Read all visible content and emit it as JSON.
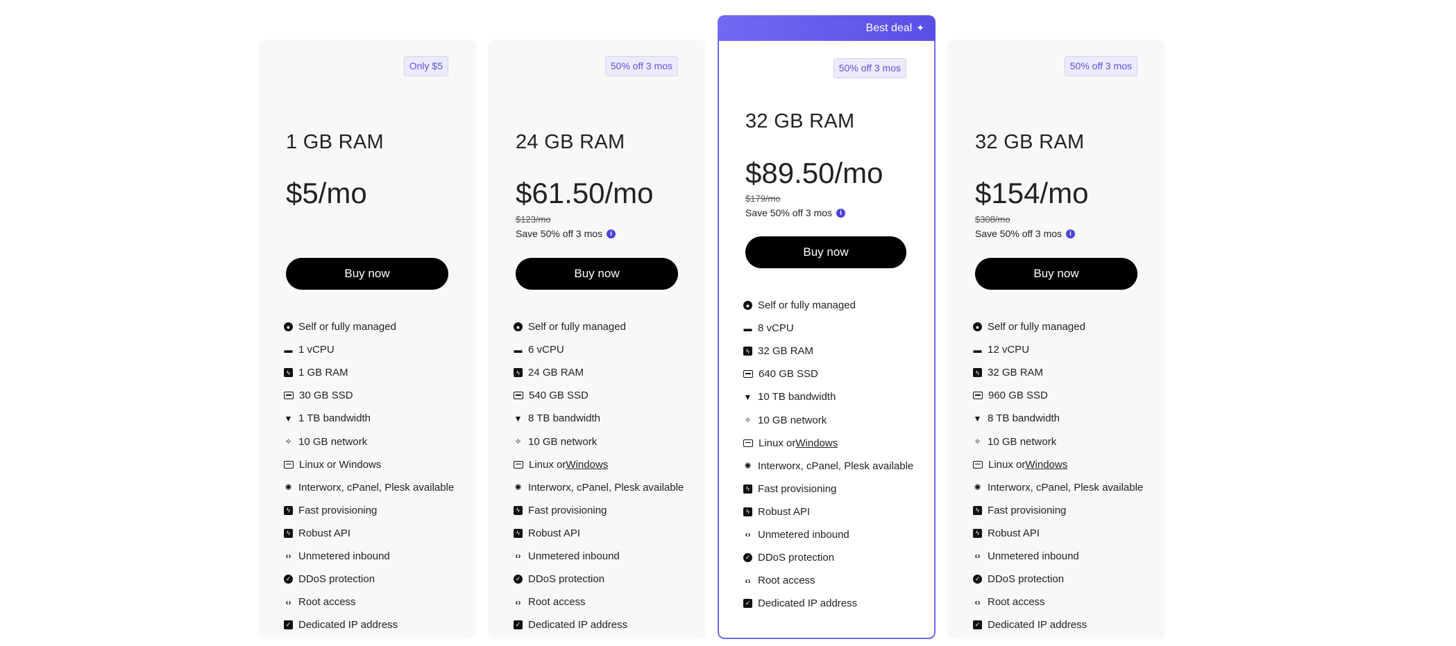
{
  "featured_banner": "Best deal",
  "plans": [
    {
      "badge": "Only $5",
      "title": "1 GB RAM",
      "price": "$5/mo",
      "old_price": "",
      "save_note": "",
      "button": "Buy now",
      "features": [
        {
          "icon": "user-icon",
          "text": "Self or fully managed"
        },
        {
          "icon": "cpu-icon",
          "text": "1 vCPU"
        },
        {
          "icon": "bolt-icon",
          "text": "1 GB RAM"
        },
        {
          "icon": "storage-icon",
          "text": "30 GB SSD"
        },
        {
          "icon": "wifi-icon",
          "text": "1 TB bandwidth"
        },
        {
          "icon": "sparkle-icon",
          "text": "10 GB network"
        },
        {
          "icon": "server-icon",
          "text": "Linux or Windows"
        },
        {
          "icon": "gear-icon",
          "text": "Interworx, cPanel, Plesk available"
        },
        {
          "icon": "bolt-icon",
          "text": "Fast provisioning"
        },
        {
          "icon": "bolt-icon",
          "text": "Robust API"
        },
        {
          "icon": "code-icon",
          "text": "Unmetered inbound"
        },
        {
          "icon": "shield-icon",
          "text": "DDoS protection"
        },
        {
          "icon": "code-icon",
          "text": "Root access"
        },
        {
          "icon": "check-icon",
          "text": "Dedicated IP address"
        }
      ]
    },
    {
      "badge": "50% off 3 mos",
      "title": "24 GB RAM",
      "price": "$61.50/mo",
      "old_price": "$123/mo",
      "save_note": "Save 50% off 3 mos",
      "button": "Buy now",
      "features": [
        {
          "icon": "user-icon",
          "text": "Self or fully managed"
        },
        {
          "icon": "cpu-icon",
          "text": "6 vCPU"
        },
        {
          "icon": "bolt-icon",
          "text": "24 GB RAM"
        },
        {
          "icon": "storage-icon",
          "text": "540 GB SSD"
        },
        {
          "icon": "wifi-icon",
          "text": "8 TB bandwidth"
        },
        {
          "icon": "sparkle-icon",
          "text": "10 GB network"
        },
        {
          "icon": "server-icon",
          "text": "Linux or ",
          "link": "Windows"
        },
        {
          "icon": "gear-icon",
          "text": "Interworx, cPanel, Plesk available"
        },
        {
          "icon": "bolt-icon",
          "text": "Fast provisioning"
        },
        {
          "icon": "bolt-icon",
          "text": "Robust API"
        },
        {
          "icon": "code-icon",
          "text": "Unmetered inbound"
        },
        {
          "icon": "shield-icon",
          "text": "DDoS protection"
        },
        {
          "icon": "code-icon",
          "text": "Root access"
        },
        {
          "icon": "check-icon",
          "text": "Dedicated IP address"
        }
      ]
    },
    {
      "badge": "50% off 3 mos",
      "title": "32 GB RAM",
      "price": "$89.50/mo",
      "old_price": "$179/mo",
      "save_note": "Save 50% off 3 mos",
      "button": "Buy now",
      "features": [
        {
          "icon": "user-icon",
          "text": "Self or fully managed"
        },
        {
          "icon": "cpu-icon",
          "text": "8 vCPU"
        },
        {
          "icon": "bolt-icon",
          "text": "32 GB RAM"
        },
        {
          "icon": "storage-icon",
          "text": "640 GB SSD"
        },
        {
          "icon": "wifi-icon",
          "text": "10 TB bandwidth"
        },
        {
          "icon": "sparkle-icon",
          "text": "10 GB network"
        },
        {
          "icon": "server-icon",
          "text": "Linux or ",
          "link": "Windows"
        },
        {
          "icon": "gear-icon",
          "text": "Interworx, cPanel, Plesk available"
        },
        {
          "icon": "bolt-icon",
          "text": "Fast provisioning"
        },
        {
          "icon": "bolt-icon",
          "text": "Robust API"
        },
        {
          "icon": "code-icon",
          "text": "Unmetered inbound"
        },
        {
          "icon": "shield-icon",
          "text": "DDoS protection"
        },
        {
          "icon": "code-icon",
          "text": "Root access"
        },
        {
          "icon": "check-icon",
          "text": "Dedicated IP address"
        }
      ]
    },
    {
      "badge": "50% off 3 mos",
      "title": "32 GB RAM",
      "price": "$154/mo",
      "old_price": "$308/mo",
      "save_note": "Save 50% off 3 mos",
      "button": "Buy now",
      "features": [
        {
          "icon": "user-icon",
          "text": "Self or fully managed"
        },
        {
          "icon": "cpu-icon",
          "text": "12 vCPU"
        },
        {
          "icon": "bolt-icon",
          "text": "32 GB RAM"
        },
        {
          "icon": "storage-icon",
          "text": "960 GB SSD"
        },
        {
          "icon": "wifi-icon",
          "text": "8 TB bandwidth"
        },
        {
          "icon": "sparkle-icon",
          "text": "10 GB network"
        },
        {
          "icon": "server-icon",
          "text": "Linux or ",
          "link": "Windows"
        },
        {
          "icon": "gear-icon",
          "text": "Interworx, cPanel, Plesk available"
        },
        {
          "icon": "bolt-icon",
          "text": "Fast provisioning"
        },
        {
          "icon": "bolt-icon",
          "text": "Robust API"
        },
        {
          "icon": "code-icon",
          "text": "Unmetered inbound"
        },
        {
          "icon": "shield-icon",
          "text": "DDoS protection"
        },
        {
          "icon": "code-icon",
          "text": "Root access"
        },
        {
          "icon": "check-icon",
          "text": "Dedicated IP address"
        }
      ]
    }
  ],
  "colors": {
    "accent": "#5b52e0",
    "card_bg": "#f9f8f6",
    "button_bg": "#000000"
  }
}
